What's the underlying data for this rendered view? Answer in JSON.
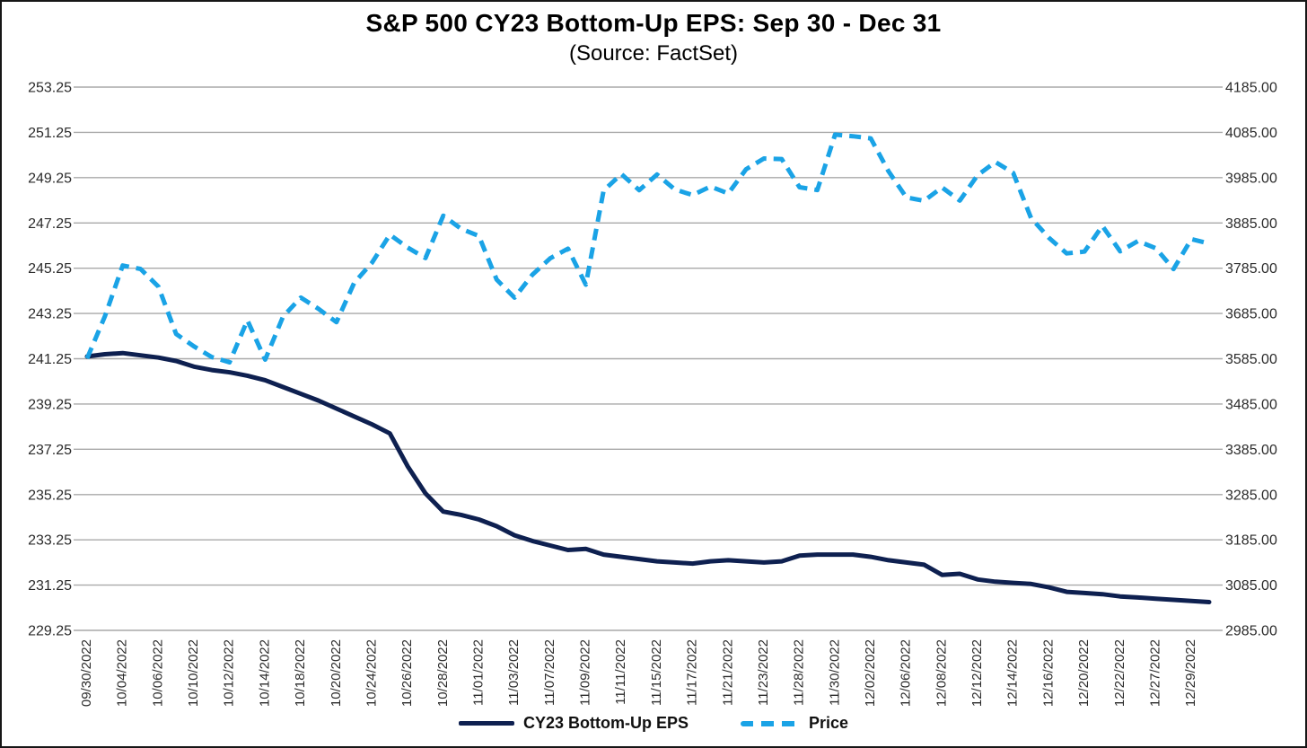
{
  "colors": {
    "eps_line": "#0e2050",
    "price_line": "#1aa3e6",
    "gridline": "#a9a9a9",
    "axis_text": "#2b2b2b",
    "background": "#ffffff",
    "border": "#161616"
  },
  "chart_data": {
    "type": "line",
    "title": "S&P 500 CY23 Bottom-Up EPS: Sep 30 - Dec 31",
    "subtitle": "(Source: FactSet)",
    "grid": true,
    "legend_position": "bottom",
    "x_tick_label_every": 2,
    "x": [
      "09/30/2022",
      "10/03/2022",
      "10/04/2022",
      "10/05/2022",
      "10/06/2022",
      "10/07/2022",
      "10/10/2022",
      "10/11/2022",
      "10/12/2022",
      "10/13/2022",
      "10/14/2022",
      "10/17/2022",
      "10/18/2022",
      "10/19/2022",
      "10/20/2022",
      "10/21/2022",
      "10/24/2022",
      "10/25/2022",
      "10/26/2022",
      "10/27/2022",
      "10/28/2022",
      "10/31/2022",
      "11/01/2022",
      "11/02/2022",
      "11/03/2022",
      "11/04/2022",
      "11/07/2022",
      "11/08/2022",
      "11/09/2022",
      "11/10/2022",
      "11/11/2022",
      "11/14/2022",
      "11/15/2022",
      "11/16/2022",
      "11/17/2022",
      "11/18/2022",
      "11/21/2022",
      "11/22/2022",
      "11/23/2022",
      "11/25/2022",
      "11/28/2022",
      "11/29/2022",
      "11/30/2022",
      "12/01/2022",
      "12/02/2022",
      "12/05/2022",
      "12/06/2022",
      "12/07/2022",
      "12/08/2022",
      "12/09/2022",
      "12/12/2022",
      "12/13/2022",
      "12/14/2022",
      "12/15/2022",
      "12/16/2022",
      "12/19/2022",
      "12/20/2022",
      "12/21/2022",
      "12/22/2022",
      "12/23/2022",
      "12/27/2022",
      "12/28/2022",
      "12/29/2022",
      "12/30/2022"
    ],
    "series": [
      {
        "name": "CY23 Bottom-Up EPS",
        "axis": "left",
        "style": "solid",
        "color": "#0e2050",
        "values": [
          241.35,
          241.45,
          241.5,
          241.4,
          241.3,
          241.15,
          240.9,
          240.75,
          240.65,
          240.5,
          240.3,
          240.0,
          239.7,
          239.4,
          239.05,
          238.7,
          238.35,
          237.95,
          236.5,
          235.3,
          234.5,
          234.35,
          234.15,
          233.85,
          233.45,
          233.2,
          233.0,
          232.8,
          232.85,
          232.6,
          232.5,
          232.4,
          232.3,
          232.25,
          232.2,
          232.3,
          232.35,
          232.3,
          232.25,
          232.3,
          232.55,
          232.6,
          232.6,
          232.6,
          232.5,
          232.35,
          232.25,
          232.15,
          231.7,
          231.75,
          231.5,
          231.4,
          231.35,
          231.3,
          231.15,
          230.95,
          230.9,
          230.85,
          230.75,
          230.7,
          230.65,
          230.6,
          230.55,
          230.5
        ]
      },
      {
        "name": "Price",
        "axis": "right",
        "style": "dashed",
        "color": "#1aa3e6",
        "values": [
          3585.62,
          3678.43,
          3790.93,
          3783.28,
          3744.52,
          3639.66,
          3612.39,
          3588.84,
          3577.03,
          3669.91,
          3583.07,
          3677.95,
          3719.98,
          3695.16,
          3665.78,
          3752.75,
          3797.34,
          3859.11,
          3830.6,
          3807.3,
          3901.06,
          3871.98,
          3856.1,
          3759.69,
          3719.89,
          3770.55,
          3806.8,
          3828.11,
          3748.57,
          3956.37,
          3992.93,
          3957.25,
          3991.73,
          3958.79,
          3946.56,
          3965.34,
          3949.94,
          4003.58,
          4027.26,
          4026.12,
          3963.94,
          3957.63,
          4080.11,
          4076.57,
          4071.7,
          3998.84,
          3941.26,
          3933.92,
          3963.51,
          3934.38,
          3990.56,
          4019.65,
          3995.32,
          3895.75,
          3852.36,
          3817.66,
          3821.62,
          3878.44,
          3822.39,
          3844.82,
          3829.25,
          3783.22,
          3849.28,
          3839.5
        ]
      }
    ],
    "left_axis": {
      "min": 229.25,
      "max": 253.25,
      "decimals": 2,
      "ticks": [
        253.25,
        251.25,
        249.25,
        247.25,
        245.25,
        243.25,
        241.25,
        239.25,
        237.25,
        235.25,
        233.25,
        231.25,
        229.25
      ]
    },
    "right_axis": {
      "min": 2985,
      "max": 4185,
      "decimals": 2,
      "ticks": [
        4185,
        4085,
        3985,
        3885,
        3785,
        3685,
        3585,
        3485,
        3385,
        3285,
        3185,
        3085,
        2985
      ]
    }
  }
}
